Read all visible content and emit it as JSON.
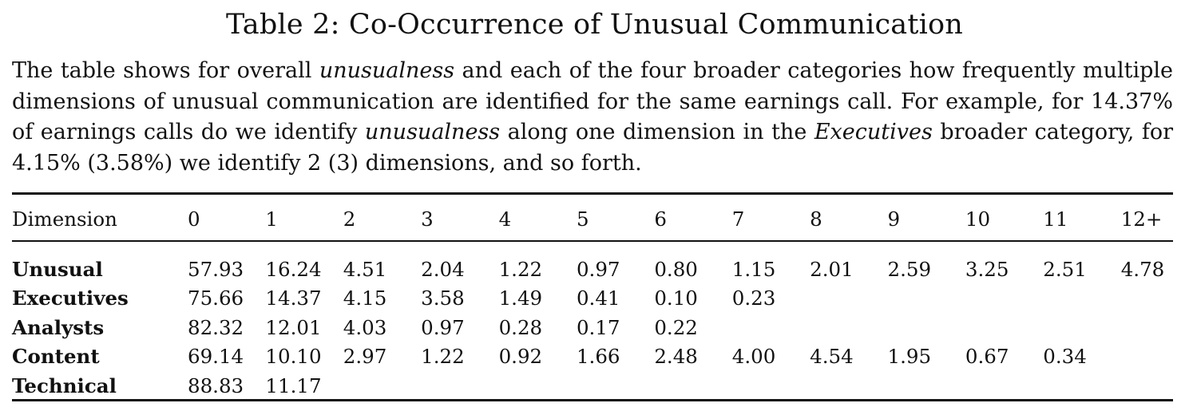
{
  "title": "Table 2: Co-Occurrence of Unusual Communication",
  "caption": {
    "p1": "The table shows for overall ",
    "em1": "unusualness",
    "p2": " and each of the four broader categories how frequently multiple dimensions of unusual communication are identified for the same earnings call. For example, for 14.37% of earnings calls do we identify ",
    "em2": "unusualness",
    "p3": " along one dimension in the ",
    "em3": "Executives",
    "p4": " broader category, for 4.15% (3.58%) we identify 2 (3) dimensions, and so forth."
  },
  "table": {
    "headers": [
      "Dimension",
      "0",
      "1",
      "2",
      "3",
      "4",
      "5",
      "6",
      "7",
      "8",
      "9",
      "10",
      "11",
      "12+"
    ],
    "rows": [
      {
        "label": "Unusual",
        "cells": [
          "57.93",
          "16.24",
          "4.51",
          "2.04",
          "1.22",
          "0.97",
          "0.80",
          "1.15",
          "2.01",
          "2.59",
          "3.25",
          "2.51",
          "4.78"
        ]
      },
      {
        "label": "Executives",
        "cells": [
          "75.66",
          "14.37",
          "4.15",
          "3.58",
          "1.49",
          "0.41",
          "0.10",
          "0.23",
          "",
          "",
          "",
          "",
          ""
        ]
      },
      {
        "label": "Analysts",
        "cells": [
          "82.32",
          "12.01",
          "4.03",
          "0.97",
          "0.28",
          "0.17",
          "0.22",
          "",
          "",
          "",
          "",
          "",
          ""
        ]
      },
      {
        "label": "Content",
        "cells": [
          "69.14",
          "10.10",
          "2.97",
          "1.22",
          "0.92",
          "1.66",
          "2.48",
          "4.00",
          "4.54",
          "1.95",
          "0.67",
          "0.34",
          ""
        ]
      },
      {
        "label": "Technical",
        "cells": [
          "88.83",
          "11.17",
          "",
          "",
          "",
          "",
          "",
          "",
          "",
          "",
          "",
          "",
          ""
        ]
      }
    ]
  }
}
